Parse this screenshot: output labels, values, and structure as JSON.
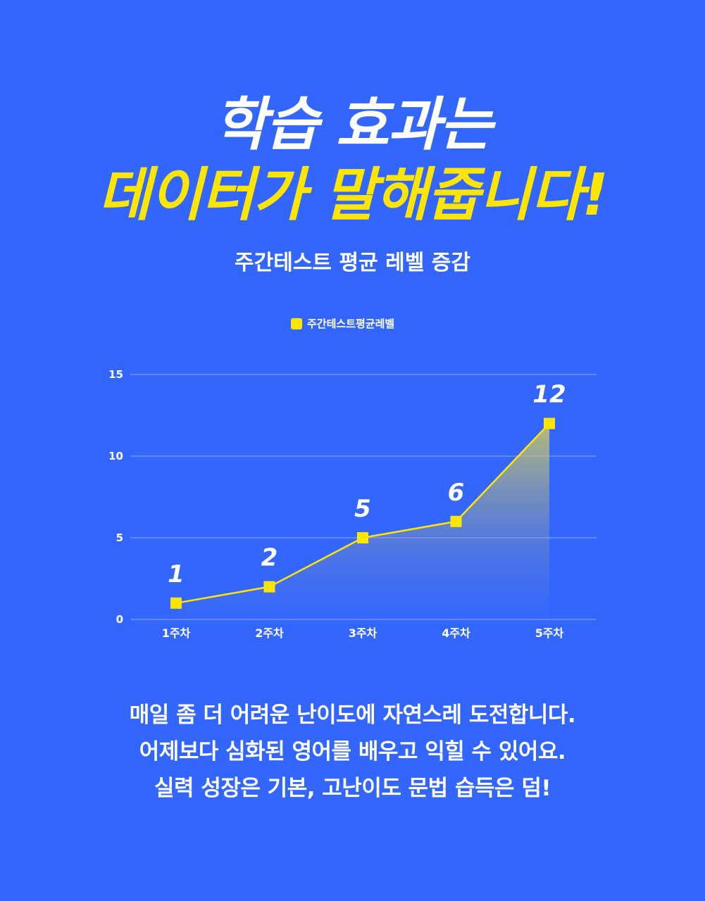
{
  "headline": {
    "line1": "학습 효과는",
    "line2": "데이터가 말해줍니다!"
  },
  "subtitle": "주간테스트 평균 레벨 증감",
  "description": [
    "매일 좀 더 어려운 난이도에 자연스레 도전합니다.",
    "어제보다 심화된 영어를 배우고 익힐 수 있어요.",
    "실력 성장은 기본, 고난이도 문법 습득은 덤!"
  ],
  "colors": {
    "background": "#3366ff",
    "accent": "#ffe600",
    "text": "#ffffff"
  },
  "chart_data": {
    "type": "line",
    "title": "",
    "xlabel": "",
    "ylabel": "",
    "categories": [
      "1주차",
      "2주차",
      "3주차",
      "4주차",
      "5주차"
    ],
    "series": [
      {
        "name": "주간테스트평균레벨",
        "values": [
          1,
          2,
          5,
          6,
          12
        ]
      }
    ],
    "data_labels": [
      "1",
      "2",
      "5",
      "6",
      "12"
    ],
    "y_ticks": [
      "0",
      "5",
      "10",
      "15"
    ],
    "ylim": [
      0,
      15
    ],
    "grid": true,
    "legend_position": "top-center",
    "area_fill": true
  }
}
